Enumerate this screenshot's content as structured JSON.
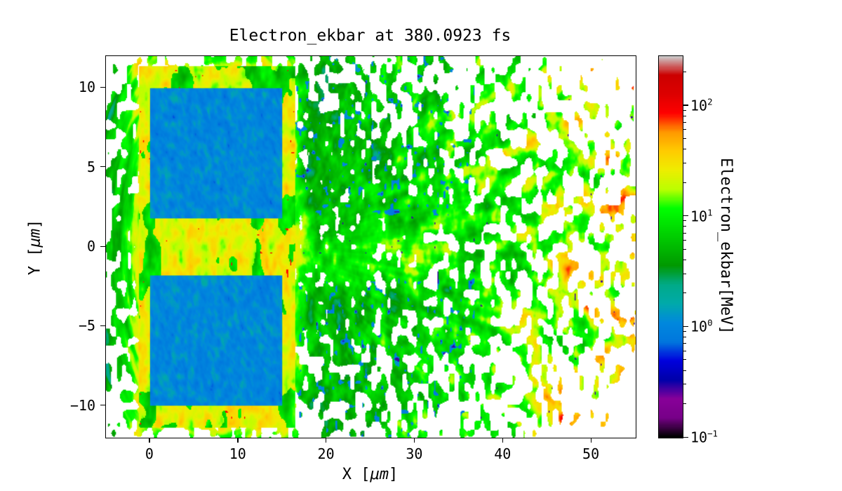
{
  "chart_data": {
    "type": "heatmap",
    "title": "Electron_ekbar at 380.0923 fs",
    "xlabel": "X [μm]",
    "ylabel": "Y [μm]",
    "xlabel_parts": {
      "pre": "X [",
      "math": "μm",
      "post": "]"
    },
    "ylabel_parts": {
      "pre": "Y [",
      "math": "μm",
      "post": "]"
    },
    "x_range": [
      -5,
      55
    ],
    "y_range": [
      -12,
      12
    ],
    "x_ticks": [
      0,
      10,
      20,
      30,
      40,
      50
    ],
    "y_ticks": [
      -10,
      -5,
      0,
      5,
      10
    ],
    "grid": false,
    "background": "#ffffff",
    "text_color": "#000000",
    "colorbar": {
      "label": "Electron_ekbar[MeV]",
      "scale": "log",
      "log10_range": [
        -1,
        2.45
      ],
      "tick_exponents": [
        2,
        1,
        0,
        -1
      ],
      "colormap": "nipy_spectral",
      "colormap_stops": [
        [
          0.0,
          0.0,
          0.0,
          0.0
        ],
        [
          0.05,
          0.4667,
          0.0,
          0.5333
        ],
        [
          0.1,
          0.5333,
          0.0,
          0.6
        ],
        [
          0.15,
          0.0,
          0.0,
          0.6667
        ],
        [
          0.2,
          0.0,
          0.0,
          0.8667
        ],
        [
          0.25,
          0.0,
          0.4667,
          0.8667
        ],
        [
          0.3,
          0.0,
          0.5333,
          0.8667
        ],
        [
          0.35,
          0.0,
          0.6667,
          0.6667
        ],
        [
          0.4,
          0.0,
          0.6667,
          0.5333
        ],
        [
          0.45,
          0.0,
          0.6,
          0.0
        ],
        [
          0.5,
          0.0,
          0.7333,
          0.0
        ],
        [
          0.55,
          0.0,
          0.8667,
          0.0
        ],
        [
          0.6,
          0.0,
          1.0,
          0.0
        ],
        [
          0.65,
          0.7333,
          1.0,
          0.0
        ],
        [
          0.7,
          0.9333,
          0.9333,
          0.0
        ],
        [
          0.75,
          1.0,
          0.8,
          0.0
        ],
        [
          0.8,
          1.0,
          0.6,
          0.0
        ],
        [
          0.85,
          1.0,
          0.0,
          0.0
        ],
        [
          0.9,
          0.8667,
          0.0,
          0.0
        ],
        [
          0.95,
          0.8,
          0.0,
          0.0
        ],
        [
          1.0,
          0.8,
          0.8,
          0.8
        ]
      ]
    },
    "features": {
      "description": "Particle-in-cell style map of mean electron kinetic energy at 380.0923 fs: two cold (~1 MeV, blue) target slabs separated by a hot yellow/orange channel, a hot sheath rim around the targets, a backward plume of green/yellow arcs on the left, and a forward plume on the right of green speckle with radial yellow-orange filaments rising to red (>100 MeV) streaks near the right edge; white denotes no data.",
      "target_slabs": [
        {
          "x": [
            0,
            15
          ],
          "y": [
            1.8,
            10
          ],
          "approx_mev": 1.0
        },
        {
          "x": [
            0,
            15
          ],
          "y": [
            -10,
            -1.8
          ],
          "approx_mev": 1.0
        }
      ],
      "hot_sheath": {
        "x": [
          -1.3,
          16.4
        ],
        "y": [
          -11.4,
          11.4
        ],
        "approx_mev": 25
      },
      "central_channel": {
        "x": [
          -1.3,
          16.4
        ],
        "y": [
          -1.8,
          1.8
        ],
        "approx_mev": 20
      },
      "forward_plume": {
        "x": [
          16.4,
          55
        ],
        "approx_mev_range": [
          3,
          200
        ]
      },
      "backward_plume": {
        "x": [
          -5,
          -1.3
        ],
        "approx_mev_range": [
          3,
          30
        ]
      }
    }
  }
}
